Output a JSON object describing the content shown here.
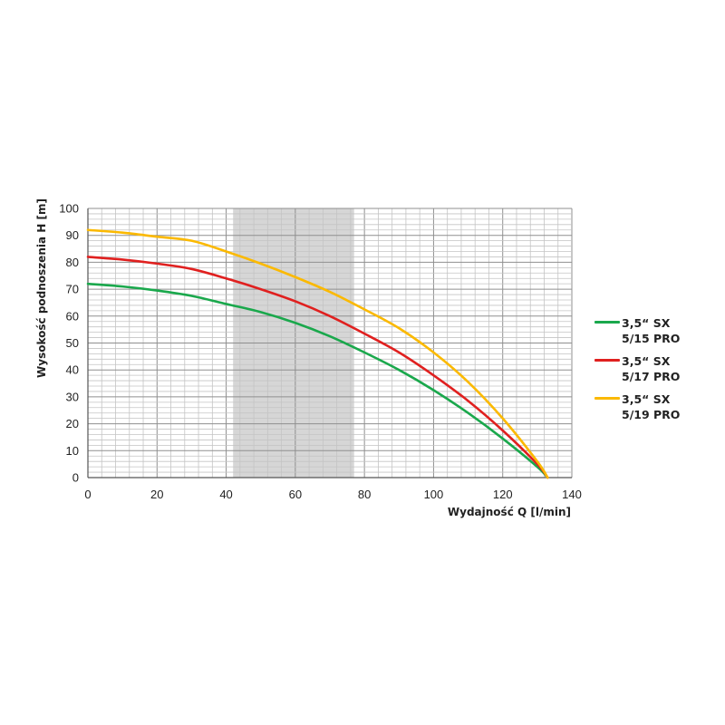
{
  "chart_data": {
    "type": "line",
    "xlabel": "Wydajność Q [l/min]",
    "ylabel": "Wysokość podnoszenia H [m]",
    "xlim": [
      0,
      140
    ],
    "ylim": [
      0,
      100
    ],
    "xticks": [
      "0",
      "20",
      "40",
      "60",
      "80",
      "100",
      "120",
      "140"
    ],
    "yticks": [
      "0",
      "10",
      "20",
      "30",
      "40",
      "50",
      "60",
      "70",
      "80",
      "90",
      "100"
    ],
    "grid": true,
    "legend_position": "right",
    "highlight_band": {
      "x": [
        42,
        77
      ],
      "color": "#d6d6d6"
    },
    "series": [
      {
        "name_line1": "3,5“ SX",
        "name_line2": "5/15 PRO",
        "color": "#1aa84c",
        "x": [
          0,
          10,
          20,
          30,
          40,
          50,
          60,
          70,
          80,
          90,
          100,
          110,
          120,
          130,
          133
        ],
        "y": [
          72,
          71,
          69.5,
          67.5,
          64.5,
          61.5,
          57.5,
          52.5,
          46.5,
          40,
          32.5,
          24,
          14.5,
          4,
          0
        ]
      },
      {
        "name_line1": "3,5“ SX",
        "name_line2": "5/17 PRO",
        "color": "#e0201f",
        "x": [
          0,
          10,
          20,
          30,
          40,
          50,
          60,
          70,
          80,
          90,
          100,
          110,
          120,
          130,
          133
        ],
        "y": [
          82,
          81,
          79.5,
          77.5,
          74,
          70,
          65.5,
          60,
          53.5,
          46.5,
          38,
          28.5,
          17.5,
          5,
          0
        ]
      },
      {
        "name_line1": "3,5“ SX",
        "name_line2": "5/19 PRO",
        "color": "#fbb900",
        "x": [
          0,
          10,
          20,
          30,
          40,
          50,
          60,
          70,
          80,
          90,
          100,
          110,
          120,
          130,
          133
        ],
        "y": [
          92,
          91,
          89.5,
          88,
          84,
          79.5,
          74.5,
          69,
          62.5,
          55.5,
          46.5,
          35.5,
          22,
          6,
          0
        ]
      }
    ]
  }
}
